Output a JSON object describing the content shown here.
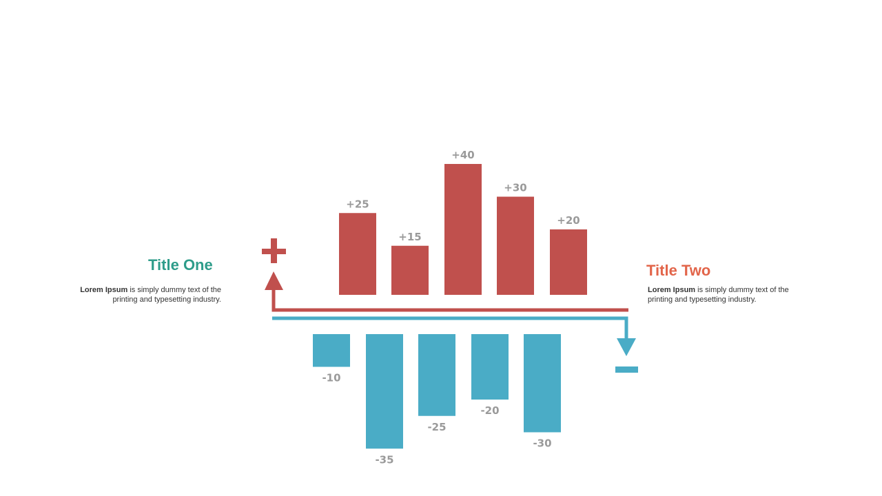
{
  "colors": {
    "positive": "#c0504d",
    "negative": "#4aacc6",
    "title_one": "#2e9c8a",
    "title_two": "#e2654a",
    "label": "#9a9a9a"
  },
  "panel_one": {
    "title": "Title One",
    "desc_bold": "Lorem Ipsum",
    "desc_rest": " is simply dummy text of the printing and typesetting industry."
  },
  "panel_two": {
    "title": "Title Two",
    "desc_bold": "Lorem Ipsum",
    "desc_rest": " is simply dummy text of the printing and typesetting industry."
  },
  "chart_data": {
    "type": "bar",
    "series": [
      {
        "values": [
          25,
          15,
          40,
          30,
          20
        ],
        "labels": [
          "+25",
          "+15",
          "+40",
          "+30",
          "+20"
        ]
      },
      {
        "values": [
          -10,
          -35,
          -25,
          -20,
          -30
        ],
        "labels": [
          "-10",
          "-35",
          "-25",
          "-20",
          "-30"
        ]
      }
    ],
    "icons": [
      "plus-icon",
      "minus-icon",
      "arrow-up-icon",
      "arrow-down-icon"
    ]
  }
}
